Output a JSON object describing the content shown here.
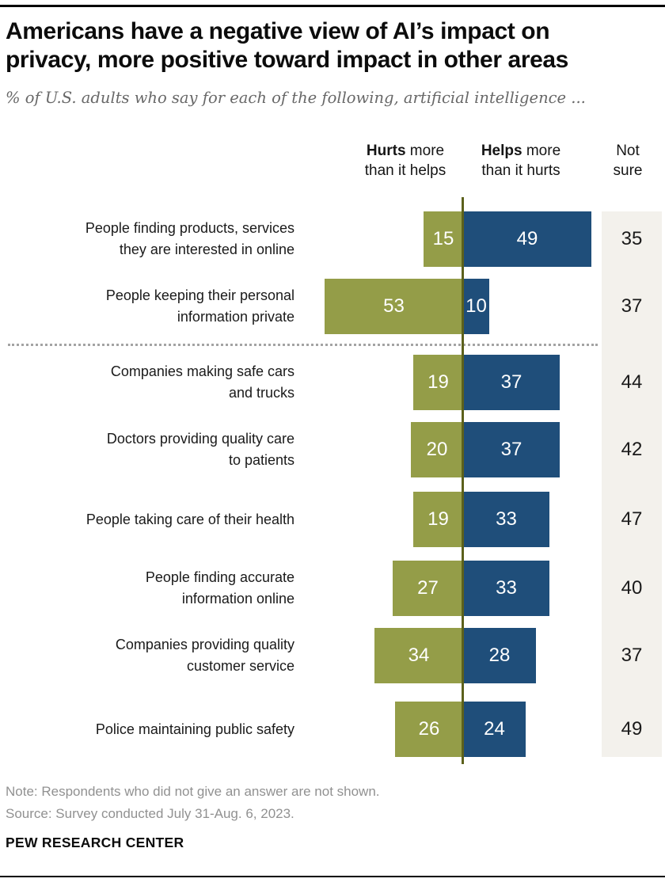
{
  "header": {
    "title_lines": [
      "Americans have a negative view of AI’s impact on",
      "privacy, more positive toward impact in other areas"
    ],
    "subtitle": "% of U.S. adults who say for each of the following, artificial intelligence ..."
  },
  "columns": {
    "hurts": {
      "bold": "Hurts",
      "rest": " more",
      "line2": "than it helps"
    },
    "helps": {
      "bold": "Helps",
      "rest": " more",
      "line2": "than it hurts"
    },
    "not_sure": {
      "line1": "Not",
      "line2": "sure"
    }
  },
  "chart_data": {
    "type": "bar",
    "orientation": "horizontal_diverging",
    "unit": "% of U.S. adults",
    "categories": [
      {
        "label": "People finding products, services they are interested in online",
        "lines": [
          "People finding products, services",
          "they are interested in online"
        ]
      },
      {
        "label": "People keeping their personal information private",
        "lines": [
          "People keeping their personal",
          "information private"
        ]
      },
      {
        "label": "Companies making safe cars and trucks",
        "lines": [
          "Companies making safe cars",
          "and trucks"
        ]
      },
      {
        "label": "Doctors providing quality care to patients",
        "lines": [
          "Doctors providing quality care",
          "to patients"
        ]
      },
      {
        "label": "People taking care of their health",
        "lines": [
          "People taking care of their health"
        ]
      },
      {
        "label": "People finding accurate information online",
        "lines": [
          "People finding accurate",
          "information online"
        ]
      },
      {
        "label": "Companies providing quality customer service",
        "lines": [
          "Companies providing quality",
          "customer service"
        ]
      },
      {
        "label": "Police maintaining public safety",
        "lines": [
          "Police maintaining public safety"
        ]
      }
    ],
    "series": [
      {
        "name": "Hurts more than it helps",
        "color": "#949D48",
        "values": [
          15,
          53,
          19,
          20,
          19,
          27,
          34,
          26
        ]
      },
      {
        "name": "Helps more than it hurts",
        "color": "#1F4E7A",
        "values": [
          49,
          10,
          37,
          37,
          33,
          33,
          28,
          24
        ]
      },
      {
        "name": "Not sure",
        "color": "#F3F1EC",
        "values": [
          35,
          37,
          44,
          42,
          47,
          40,
          37,
          49
        ]
      }
    ],
    "divider_after_category_index": 1,
    "center_line_color": "#5C611C",
    "divider_color": "#A3A3A3",
    "value_label_color": "#FFFFFF"
  },
  "footer": {
    "note": "Note: Respondents who did not give an answer are not shown.",
    "source": "Source: Survey conducted July 31-Aug. 6, 2023.",
    "brand": "PEW RESEARCH CENTER"
  }
}
